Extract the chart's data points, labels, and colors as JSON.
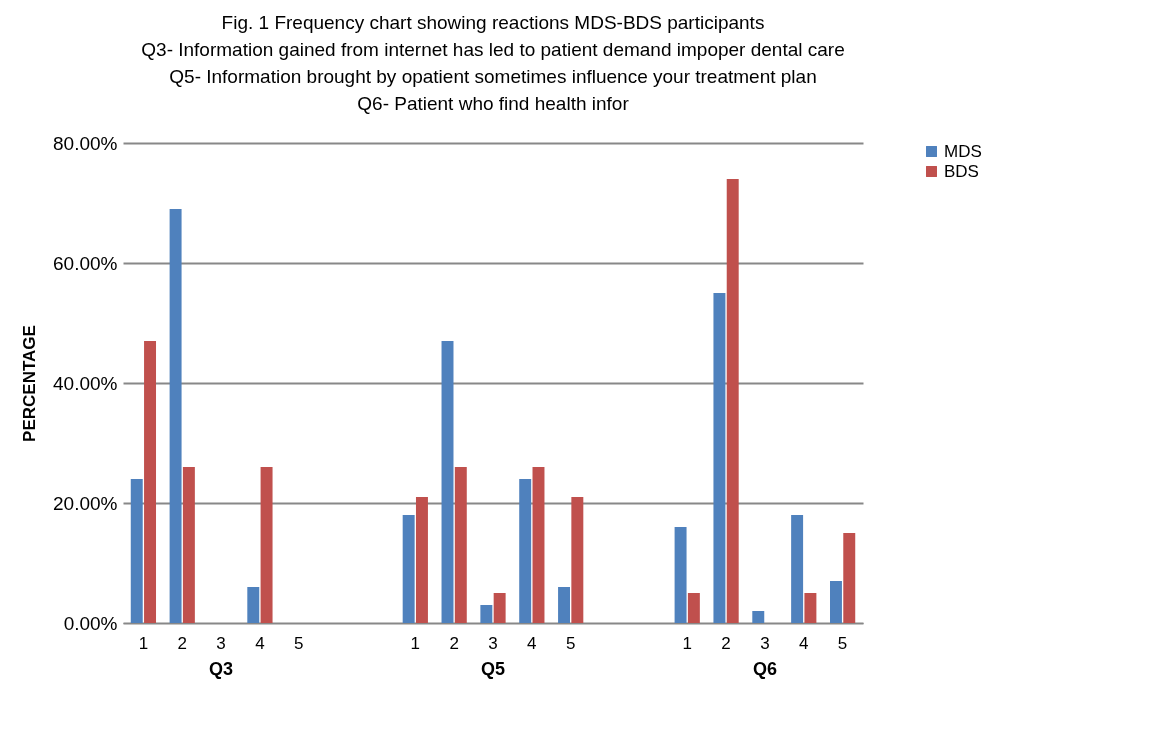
{
  "chart_data": {
    "type": "bar",
    "title": "Fig. 1 Frequency chart showing  reactions MDS-BDS participants\nQ3- Information gained from internet has led to patient demand impoper dental care\nQ5- Information brought by opatient sometimes influence your treatment plan\nQ6- Patient who find health infor",
    "ylabel": "PERCENTAGE",
    "categories": [
      "1",
      "2",
      "3",
      "4",
      "5",
      null,
      null,
      "1",
      "2",
      "3",
      "4",
      "5",
      null,
      null,
      "1",
      "2",
      "3",
      "4",
      "5"
    ],
    "series": [
      {
        "name": "MDS",
        "color": "#4f81bd",
        "values": [
          24,
          69,
          0,
          6,
          0,
          null,
          0,
          18,
          47,
          3,
          24,
          6,
          null,
          0,
          16,
          55,
          2,
          18,
          7
        ]
      },
      {
        "name": "BDS",
        "color": "#c0504d",
        "values": [
          47,
          26,
          0,
          26,
          0,
          null,
          0,
          21,
          26,
          5,
          26,
          21,
          null,
          0,
          5,
          74,
          0,
          5,
          15
        ]
      }
    ],
    "ylim": [
      0,
      80
    ],
    "yticks": [
      {
        "value": 0,
        "label": "0.00%"
      },
      {
        "value": 20,
        "label": "20.00%"
      },
      {
        "value": 40,
        "label": "40.00%"
      },
      {
        "value": 60,
        "label": "60.00%"
      },
      {
        "value": 80,
        "label": "80.00%"
      }
    ],
    "annotations": [
      "Q3",
      "Q5",
      "Q6"
    ],
    "grid": "y",
    "legend": "right"
  }
}
